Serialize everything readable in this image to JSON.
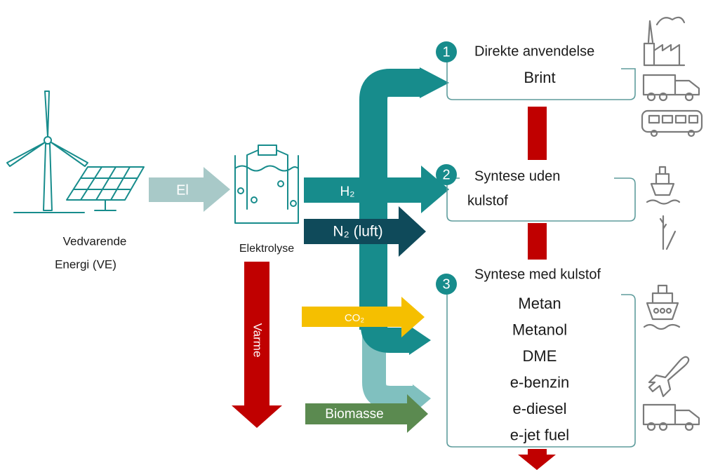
{
  "source": {
    "label_lines": [
      "Vedvarende",
      "Energi (VE)"
    ]
  },
  "flows": {
    "el": "El",
    "electrolysis": "Elektrolyse",
    "h2": "H₂",
    "n2": "N₂ (luft)",
    "heat": "Varme",
    "co2": "CO₂",
    "biomass": "Biomasse"
  },
  "outputs": [
    {
      "number": "1",
      "title_lines": [
        "Direkte anvendelse"
      ],
      "products": [
        "Brint"
      ]
    },
    {
      "number": "2",
      "title_lines": [
        "Syntese uden",
        "kulstof"
      ]
    },
    {
      "number": "3",
      "title_lines": [
        "Syntese med kulstof"
      ],
      "products": [
        "Metan",
        "Metanol",
        "DME",
        "e-benzin",
        "e-diesel",
        "e-jet fuel"
      ]
    }
  ]
}
